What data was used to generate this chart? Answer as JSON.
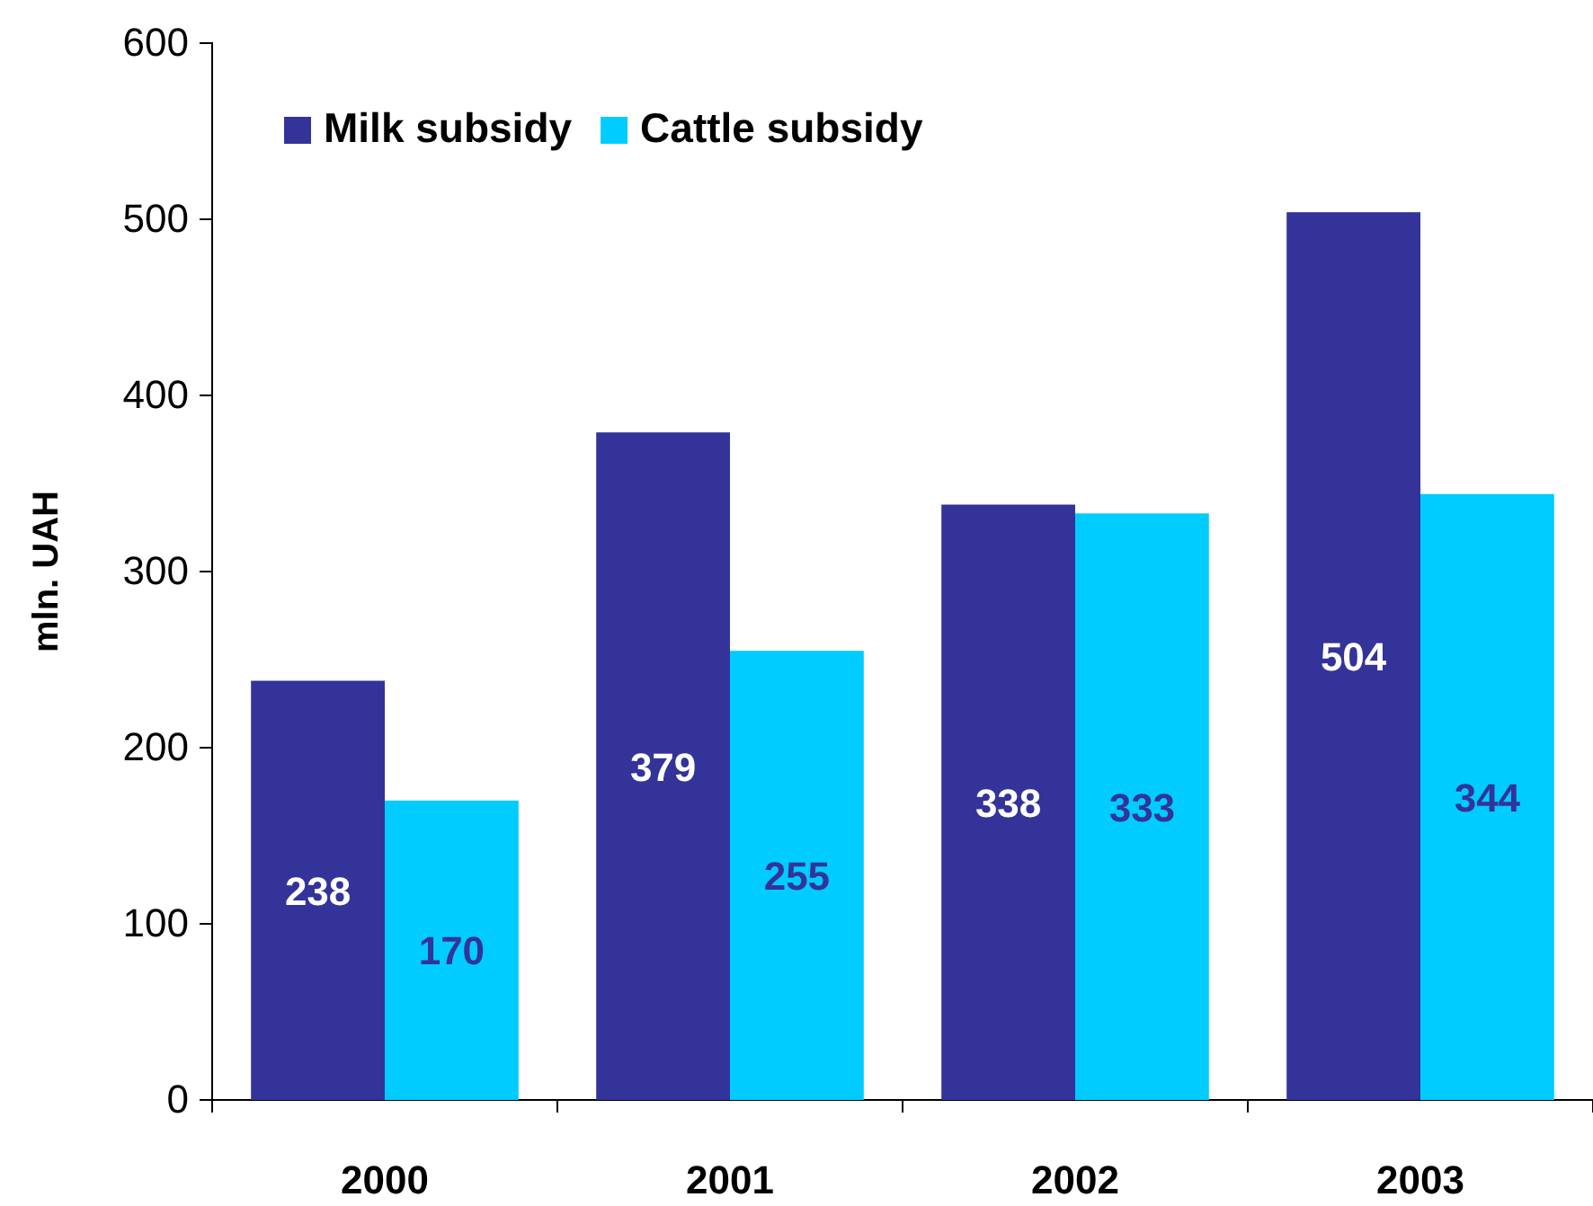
{
  "chart_data": {
    "type": "bar",
    "ylabel": "mln. UAH",
    "categories": [
      "2000",
      "2001",
      "2002",
      "2003"
    ],
    "series": [
      {
        "name": "Milk subsidy",
        "color": "#333399",
        "values": [
          238,
          379,
          338,
          504
        ]
      },
      {
        "name": "Cattle subsidy",
        "color": "#00ccff",
        "values": [
          170,
          255,
          333,
          344
        ]
      }
    ],
    "ylim": [
      0,
      600
    ],
    "yticks": [
      0,
      100,
      200,
      300,
      400,
      500,
      600
    ],
    "grid": false,
    "legend": "top left",
    "data_labels": true
  }
}
